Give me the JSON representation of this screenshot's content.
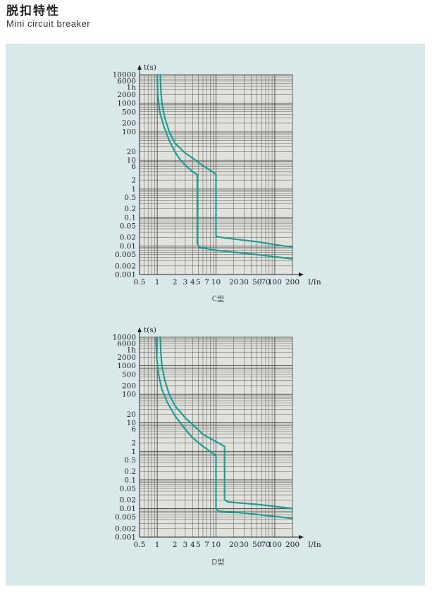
{
  "header": {
    "title": "脱扣特性",
    "subtitle": "Mini circuit breaker"
  },
  "colors": {
    "panel_bg": "#d9e9ea",
    "plot_bg": "#e2e2dd",
    "grid": "#444444",
    "curve": "#1f9e93"
  },
  "chart_data": [
    {
      "type": "line",
      "caption": "C型",
      "xlabel": "I/In",
      "ylabel": "t(s)",
      "x_scale": "log",
      "y_scale": "log",
      "xlim": [
        0.5,
        200
      ],
      "ylim": [
        0.001,
        10000
      ],
      "grid": true,
      "x_ticks": [
        {
          "v": 0.5,
          "label": "0.5"
        },
        {
          "v": 1,
          "label": "1"
        },
        {
          "v": 2,
          "label": "2"
        },
        {
          "v": 3,
          "label": "3"
        },
        {
          "v": 4,
          "label": "4"
        },
        {
          "v": 5,
          "label": "5"
        },
        {
          "v": 7,
          "label": "7"
        },
        {
          "v": 10,
          "label": "10"
        },
        {
          "v": 20,
          "label": "20"
        },
        {
          "v": 30,
          "label": "30"
        },
        {
          "v": 50,
          "label": "50"
        },
        {
          "v": 70,
          "label": "70"
        },
        {
          "v": 100,
          "label": "100"
        },
        {
          "v": 200,
          "label": "200"
        }
      ],
      "y_ticks": [
        {
          "v": 10000,
          "label": "10000"
        },
        {
          "v": 6000,
          "label": "6000"
        },
        {
          "v": 3600,
          "label": "1h"
        },
        {
          "v": 2000,
          "label": "2000"
        },
        {
          "v": 1000,
          "label": "1000"
        },
        {
          "v": 500,
          "label": "500"
        },
        {
          "v": 200,
          "label": "200"
        },
        {
          "v": 100,
          "label": "100"
        },
        {
          "v": 20,
          "label": "20"
        },
        {
          "v": 10,
          "label": "10"
        },
        {
          "v": 6,
          "label": "6"
        },
        {
          "v": 2,
          "label": "2"
        },
        {
          "v": 1,
          "label": "1"
        },
        {
          "v": 0.5,
          "label": "0.5"
        },
        {
          "v": 0.2,
          "label": "0.2"
        },
        {
          "v": 0.1,
          "label": "0.1"
        },
        {
          "v": 0.05,
          "label": "0.05"
        },
        {
          "v": 0.02,
          "label": "0.02"
        },
        {
          "v": 0.01,
          "label": "0.01"
        },
        {
          "v": 0.005,
          "label": "0.005"
        },
        {
          "v": 0.002,
          "label": "0.002"
        },
        {
          "v": 0.001,
          "label": "0.001"
        }
      ],
      "series": [
        {
          "points": [
            [
              1.13,
              10000
            ],
            [
              1.15,
              3000
            ],
            [
              1.2,
              1000
            ],
            [
              1.35,
              300
            ],
            [
              1.6,
              100
            ],
            [
              2,
              40
            ],
            [
              3,
              18
            ],
            [
              4.5,
              10
            ],
            [
              6,
              6.5
            ],
            [
              8,
              4.5
            ],
            [
              10,
              3.2
            ],
            [
              10,
              0.022
            ],
            [
              12,
              0.02
            ],
            [
              50,
              0.014
            ],
            [
              200,
              0.009
            ]
          ]
        },
        {
          "points": [
            [
              1.0,
              10000
            ],
            [
              1.02,
              2000
            ],
            [
              1.1,
              500
            ],
            [
              1.3,
              150
            ],
            [
              1.6,
              50
            ],
            [
              2,
              20
            ],
            [
              2.5,
              10
            ],
            [
              3.2,
              6
            ],
            [
              4,
              4
            ],
            [
              4.8,
              3.2
            ],
            [
              4.8,
              0.012
            ],
            [
              5.2,
              0.009
            ],
            [
              10,
              0.007
            ],
            [
              50,
              0.005
            ],
            [
              200,
              0.0035
            ]
          ]
        }
      ]
    },
    {
      "type": "line",
      "caption": "D型",
      "xlabel": "I/In",
      "ylabel": "t(s)",
      "x_scale": "log",
      "y_scale": "log",
      "xlim": [
        0.5,
        200
      ],
      "ylim": [
        0.001,
        10000
      ],
      "grid": true,
      "x_ticks": [
        {
          "v": 0.5,
          "label": "0.5"
        },
        {
          "v": 1,
          "label": "1"
        },
        {
          "v": 2,
          "label": "2"
        },
        {
          "v": 3,
          "label": "3"
        },
        {
          "v": 4,
          "label": "4"
        },
        {
          "v": 5,
          "label": "5"
        },
        {
          "v": 7,
          "label": "7"
        },
        {
          "v": 10,
          "label": "10"
        },
        {
          "v": 20,
          "label": "20"
        },
        {
          "v": 30,
          "label": "30"
        },
        {
          "v": 50,
          "label": "50"
        },
        {
          "v": 70,
          "label": "70"
        },
        {
          "v": 100,
          "label": "100"
        },
        {
          "v": 200,
          "label": "200"
        }
      ],
      "y_ticks": [
        {
          "v": 10000,
          "label": "10000"
        },
        {
          "v": 6000,
          "label": "6000"
        },
        {
          "v": 3600,
          "label": "1h"
        },
        {
          "v": 2000,
          "label": "2000"
        },
        {
          "v": 1000,
          "label": "1000"
        },
        {
          "v": 500,
          "label": "500"
        },
        {
          "v": 200,
          "label": "200"
        },
        {
          "v": 100,
          "label": "100"
        },
        {
          "v": 20,
          "label": "20"
        },
        {
          "v": 10,
          "label": "10"
        },
        {
          "v": 6,
          "label": "6"
        },
        {
          "v": 2,
          "label": "2"
        },
        {
          "v": 1,
          "label": "1"
        },
        {
          "v": 0.5,
          "label": "0.5"
        },
        {
          "v": 0.2,
          "label": "0.2"
        },
        {
          "v": 0.1,
          "label": "0.1"
        },
        {
          "v": 0.05,
          "label": "0.05"
        },
        {
          "v": 0.02,
          "label": "0.02"
        },
        {
          "v": 0.01,
          "label": "0.01"
        },
        {
          "v": 0.005,
          "label": "0.005"
        },
        {
          "v": 0.002,
          "label": "0.002"
        },
        {
          "v": 0.001,
          "label": "0.001"
        }
      ],
      "series": [
        {
          "points": [
            [
              1.13,
              10000
            ],
            [
              1.15,
              3000
            ],
            [
              1.2,
              1000
            ],
            [
              1.35,
              300
            ],
            [
              1.6,
              100
            ],
            [
              2,
              40
            ],
            [
              3,
              15
            ],
            [
              4.5,
              7
            ],
            [
              6,
              4
            ],
            [
              8,
              2.8
            ],
            [
              10,
              2.2
            ],
            [
              14,
              1.5
            ],
            [
              14,
              0.02
            ],
            [
              16,
              0.017
            ],
            [
              50,
              0.014
            ],
            [
              200,
              0.01
            ]
          ]
        },
        {
          "points": [
            [
              0.95,
              10000
            ],
            [
              0.98,
              2000
            ],
            [
              1.05,
              500
            ],
            [
              1.2,
              150
            ],
            [
              1.5,
              50
            ],
            [
              2,
              18
            ],
            [
              3,
              6
            ],
            [
              4,
              3
            ],
            [
              6,
              1.5
            ],
            [
              8,
              1
            ],
            [
              10,
              0.7
            ],
            [
              10,
              0.01
            ],
            [
              11,
              0.008
            ],
            [
              30,
              0.007
            ],
            [
              200,
              0.0045
            ]
          ]
        }
      ]
    }
  ]
}
